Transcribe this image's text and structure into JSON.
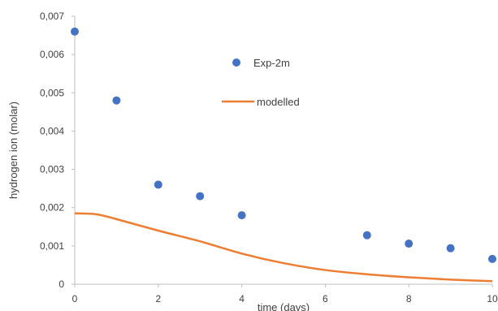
{
  "chart_data": {
    "type": "scatter",
    "xlabel": "time (days)",
    "ylabel": "hydrogen ion (molar)",
    "xlim": [
      0,
      10
    ],
    "ylim": [
      0,
      0.007
    ],
    "x_ticks": [
      "0",
      "2",
      "4",
      "6",
      "8",
      "10"
    ],
    "y_ticks": [
      "0",
      "0,001",
      "0,002",
      "0,003",
      "0,004",
      "0,005",
      "0,006",
      "0,007"
    ],
    "grid": false,
    "legend_position": "top-center",
    "series": [
      {
        "name": "Exp-2m",
        "type": "scatter",
        "color": "#4472C4",
        "points": [
          {
            "x": 0,
            "y": 0.0066
          },
          {
            "x": 1,
            "y": 0.0048
          },
          {
            "x": 2,
            "y": 0.0026
          },
          {
            "x": 3,
            "y": 0.0023
          },
          {
            "x": 4,
            "y": 0.0018
          },
          {
            "x": 7,
            "y": 0.00128
          },
          {
            "x": 8,
            "y": 0.00106
          },
          {
            "x": 9,
            "y": 0.00094
          },
          {
            "x": 10,
            "y": 0.00066
          }
        ]
      },
      {
        "name": "modelled",
        "type": "line",
        "color": "#ED7D31",
        "points": [
          {
            "x": 0,
            "y": 0.00185
          },
          {
            "x": 0.5,
            "y": 0.00183
          },
          {
            "x": 1,
            "y": 0.0017
          },
          {
            "x": 2,
            "y": 0.0014
          },
          {
            "x": 3,
            "y": 0.00112
          },
          {
            "x": 4,
            "y": 0.0008
          },
          {
            "x": 5,
            "y": 0.00055
          },
          {
            "x": 6,
            "y": 0.00037
          },
          {
            "x": 7,
            "y": 0.00026
          },
          {
            "x": 8,
            "y": 0.00018
          },
          {
            "x": 9,
            "y": 0.00012
          },
          {
            "x": 10,
            "y": 8e-05
          }
        ]
      }
    ]
  }
}
